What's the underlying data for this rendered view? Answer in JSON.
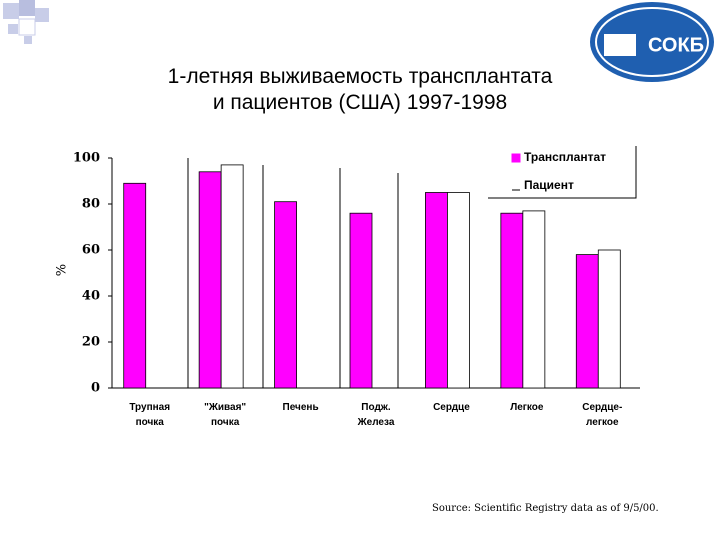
{
  "chart_data": {
    "type": "bar",
    "title": "1-летняя выживаемость трансплантата\nи пациентов (США) 1997-1998",
    "y_label": "%",
    "categories": [
      "Трупная\nпочка",
      "\"Живая\"\nпочка",
      "Печень",
      "Подж.\nЖелеза",
      "Сердце",
      "Легкое",
      "Сердце-\nлегкое"
    ],
    "series": [
      {
        "name": "Трансплантат",
        "color": "#ff00ff",
        "values": [
          89,
          94,
          81,
          76,
          85,
          76,
          58
        ]
      },
      {
        "name": "Пациент",
        "color": "#ffffff",
        "values": [
          null,
          97,
          null,
          null,
          85,
          77,
          60
        ]
      }
    ],
    "ylim": [
      0,
      100
    ],
    "yticks": [
      0,
      20,
      40,
      60,
      80,
      100
    ],
    "grid": false,
    "legend": "top-right"
  },
  "slide": {
    "logo": "СОКБ",
    "source": "Source:  Scientific Registry data as of 9/5/00."
  }
}
